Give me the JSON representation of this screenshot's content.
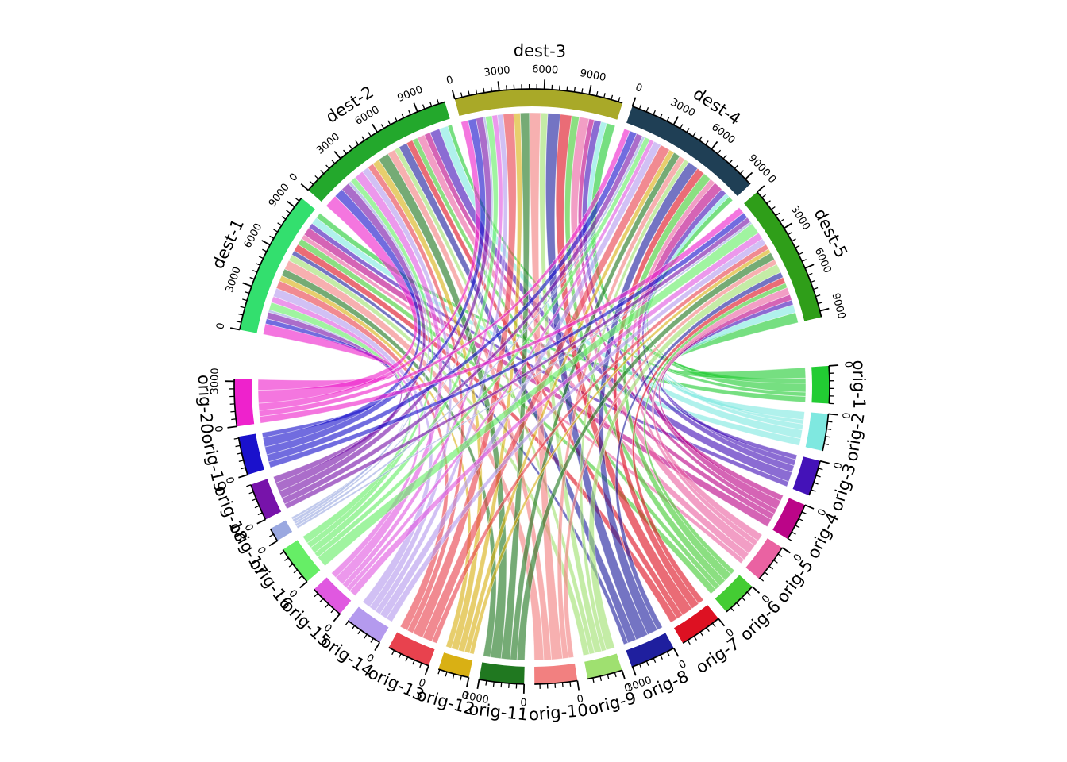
{
  "figure": {
    "background": "#ffffff",
    "kind": "circular chord diagram of origin-destination flows"
  },
  "chart_data": {
    "type": "chord",
    "title": "",
    "destinations": [
      {
        "name": "dest-1",
        "color": "#33DF6E"
      },
      {
        "name": "dest-2",
        "color": "#23A82C"
      },
      {
        "name": "dest-3",
        "color": "#A9A928"
      },
      {
        "name": "dest-4",
        "color": "#1F3F55"
      },
      {
        "name": "dest-5",
        "color": "#2F9E19"
      }
    ],
    "origins": [
      {
        "name": "orig-1",
        "color": "#22CC33"
      },
      {
        "name": "orig-2",
        "color": "#7FE8E0"
      },
      {
        "name": "orig-3",
        "color": "#4412B8"
      },
      {
        "name": "orig-4",
        "color": "#BB0588"
      },
      {
        "name": "orig-5",
        "color": "#EA62A2"
      },
      {
        "name": "orig-6",
        "color": "#44CC33"
      },
      {
        "name": "orig-7",
        "color": "#DD1122"
      },
      {
        "name": "orig-8",
        "color": "#1F1F9E"
      },
      {
        "name": "orig-9",
        "color": "#9FE070"
      },
      {
        "name": "orig-10",
        "color": "#F28080"
      },
      {
        "name": "orig-11",
        "color": "#207820"
      },
      {
        "name": "orig-12",
        "color": "#D9B014"
      },
      {
        "name": "orig-13",
        "color": "#E8424E"
      },
      {
        "name": "orig-14",
        "color": "#B49AEE"
      },
      {
        "name": "orig-15",
        "color": "#E058E0"
      },
      {
        "name": "orig-16",
        "color": "#66EE66"
      },
      {
        "name": "orig-17",
        "color": "#9AA8E0"
      },
      {
        "name": "orig-18",
        "color": "#7713AA"
      },
      {
        "name": "orig-19",
        "color": "#1A11CC"
      },
      {
        "name": "orig-20",
        "color": "#EE22CC"
      }
    ],
    "matrix": {
      "rows": "origins",
      "cols": "destinations",
      "values": [
        [
          420,
          310,
          640,
          380,
          760
        ],
        [
          520,
          640,
          420,
          310,
          590
        ],
        [
          380,
          720,
          510,
          440,
          350
        ],
        [
          610,
          440,
          380,
          680,
          420
        ],
        [
          350,
          560,
          720,
          410,
          530
        ],
        [
          480,
          390,
          550,
          620,
          360
        ],
        [
          540,
          470,
          830,
          590,
          440
        ],
        [
          330,
          620,
          910,
          780,
          410
        ],
        [
          460,
          380,
          520,
          350,
          640
        ],
        [
          690,
          550,
          810,
          430,
          380
        ],
        [
          520,
          780,
          660,
          490,
          560
        ],
        [
          410,
          520,
          470,
          380,
          310
        ],
        [
          580,
          450,
          770,
          720,
          390
        ],
        [
          630,
          490,
          420,
          550,
          470
        ],
        [
          450,
          680,
          390,
          330,
          520
        ],
        [
          560,
          420,
          480,
          390,
          810
        ],
        [
          180,
          220,
          160,
          200,
          170
        ],
        [
          490,
          640,
          540,
          460,
          380
        ],
        [
          370,
          690,
          580,
          520,
          440
        ],
        [
          780,
          950,
          520,
          430,
          490
        ]
      ]
    },
    "axis": {
      "major_tick_interval": 3000,
      "minor_tick_interval": 500,
      "visible_major_labels": [
        "0",
        "3000",
        "6000",
        "9000"
      ]
    },
    "layout": {
      "destinations_position": "top arc, left to right",
      "origins_position": "bottom arc, right to left",
      "start_angle_deg": 169,
      "small_gap_deg": 2,
      "big_gap_deg": 9.5,
      "direction": "clockwise",
      "ribbon_opacity": 0.62,
      "grid": false,
      "legend": false
    }
  }
}
